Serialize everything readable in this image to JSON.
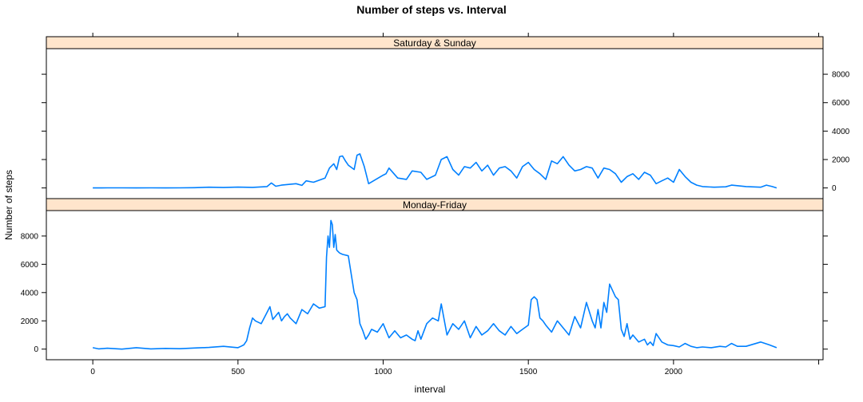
{
  "chart_data": {
    "type": "line",
    "title": "Number of steps vs. Interval",
    "xlabel": "interval",
    "ylabel": "Number of steps",
    "xlim": [
      -160,
      2515
    ],
    "ylim": [
      -750,
      9800
    ],
    "x_ticks": [
      0,
      500,
      1000,
      1500,
      2000
    ],
    "y_ticks": [
      0,
      2000,
      4000,
      6000,
      8000
    ],
    "grid": false,
    "line_color": "#0080ff",
    "strip_color": "#ffe5cc",
    "panels": [
      {
        "name": "Saturday & Sunday",
        "x": [
          0,
          50,
          100,
          150,
          200,
          250,
          300,
          350,
          400,
          450,
          500,
          550,
          600,
          615,
          630,
          650,
          700,
          720,
          735,
          760,
          800,
          815,
          830,
          840,
          850,
          860,
          870,
          880,
          900,
          910,
          920,
          935,
          950,
          1000,
          1010,
          1020,
          1050,
          1080,
          1100,
          1130,
          1150,
          1180,
          1200,
          1220,
          1240,
          1260,
          1280,
          1300,
          1320,
          1340,
          1360,
          1380,
          1400,
          1420,
          1440,
          1460,
          1480,
          1500,
          1520,
          1540,
          1560,
          1580,
          1600,
          1620,
          1640,
          1660,
          1680,
          1700,
          1720,
          1740,
          1760,
          1780,
          1800,
          1820,
          1840,
          1860,
          1880,
          1900,
          1920,
          1940,
          1960,
          1980,
          2000,
          2020,
          2040,
          2060,
          2080,
          2100,
          2140,
          2180,
          2200,
          2250,
          2300,
          2320,
          2340,
          2355
        ],
        "values": [
          0,
          10,
          5,
          0,
          10,
          0,
          5,
          20,
          50,
          30,
          60,
          40,
          100,
          350,
          120,
          200,
          300,
          180,
          500,
          400,
          700,
          1400,
          1700,
          1300,
          2200,
          2250,
          1900,
          1600,
          1300,
          2300,
          2400,
          1500,
          300,
          900,
          1000,
          1400,
          700,
          600,
          1200,
          1100,
          600,
          900,
          2000,
          2200,
          1300,
          900,
          1500,
          1400,
          1800,
          1200,
          1600,
          900,
          1400,
          1500,
          1200,
          700,
          1500,
          1800,
          1300,
          1000,
          600,
          1900,
          1700,
          2200,
          1600,
          1200,
          1300,
          1500,
          1400,
          700,
          1400,
          1300,
          1000,
          400,
          800,
          1000,
          600,
          1100,
          900,
          300,
          500,
          700,
          400,
          1300,
          800,
          400,
          200,
          100,
          50,
          80,
          200,
          100,
          50,
          200,
          100,
          0
        ]
      },
      {
        "name": "Monday-Friday",
        "x": [
          0,
          20,
          50,
          100,
          150,
          200,
          250,
          300,
          350,
          400,
          450,
          500,
          510,
          520,
          530,
          540,
          550,
          560,
          580,
          600,
          610,
          620,
          640,
          650,
          660,
          670,
          680,
          700,
          720,
          740,
          760,
          780,
          800,
          805,
          810,
          815,
          820,
          825,
          830,
          835,
          840,
          845,
          850,
          860,
          880,
          900,
          910,
          920,
          930,
          940,
          950,
          960,
          980,
          1000,
          1020,
          1040,
          1060,
          1080,
          1100,
          1110,
          1120,
          1130,
          1150,
          1170,
          1190,
          1200,
          1210,
          1220,
          1240,
          1260,
          1280,
          1300,
          1320,
          1340,
          1360,
          1380,
          1400,
          1420,
          1440,
          1460,
          1480,
          1500,
          1510,
          1520,
          1530,
          1540,
          1550,
          1560,
          1580,
          1600,
          1620,
          1640,
          1660,
          1680,
          1700,
          1720,
          1730,
          1740,
          1750,
          1760,
          1770,
          1780,
          1800,
          1810,
          1820,
          1830,
          1840,
          1850,
          1860,
          1880,
          1900,
          1910,
          1920,
          1930,
          1940,
          1960,
          1980,
          2000,
          2020,
          2040,
          2060,
          2080,
          2100,
          2130,
          2160,
          2180,
          2200,
          2220,
          2250,
          2300,
          2330,
          2355
        ],
        "values": [
          100,
          20,
          60,
          0,
          100,
          20,
          50,
          30,
          80,
          120,
          200,
          100,
          200,
          300,
          600,
          1500,
          2200,
          2000,
          1800,
          2600,
          3000,
          2100,
          2600,
          2000,
          2300,
          2500,
          2200,
          1800,
          2800,
          2500,
          3200,
          2900,
          3000,
          6500,
          8000,
          7200,
          9100,
          8800,
          7200,
          8100,
          7000,
          6900,
          6800,
          6700,
          6600,
          4000,
          3500,
          1800,
          1300,
          700,
          1000,
          1400,
          1200,
          1800,
          800,
          1300,
          800,
          1000,
          700,
          600,
          1300,
          700,
          1800,
          2200,
          2000,
          3200,
          2100,
          1000,
          1800,
          1400,
          2000,
          800,
          1600,
          1000,
          1300,
          1800,
          1300,
          1000,
          1600,
          1100,
          1400,
          1700,
          3500,
          3700,
          3500,
          2200,
          2000,
          1700,
          1200,
          2000,
          1500,
          1000,
          2300,
          1500,
          3300,
          2000,
          1500,
          2800,
          1500,
          3300,
          2600,
          4600,
          3700,
          3500,
          1400,
          900,
          1800,
          700,
          1000,
          500,
          700,
          300,
          500,
          250,
          1100,
          500,
          300,
          250,
          150,
          400,
          200,
          100,
          150,
          100,
          200,
          150,
          400,
          200,
          200,
          500,
          300,
          100
        ]
      }
    ]
  }
}
